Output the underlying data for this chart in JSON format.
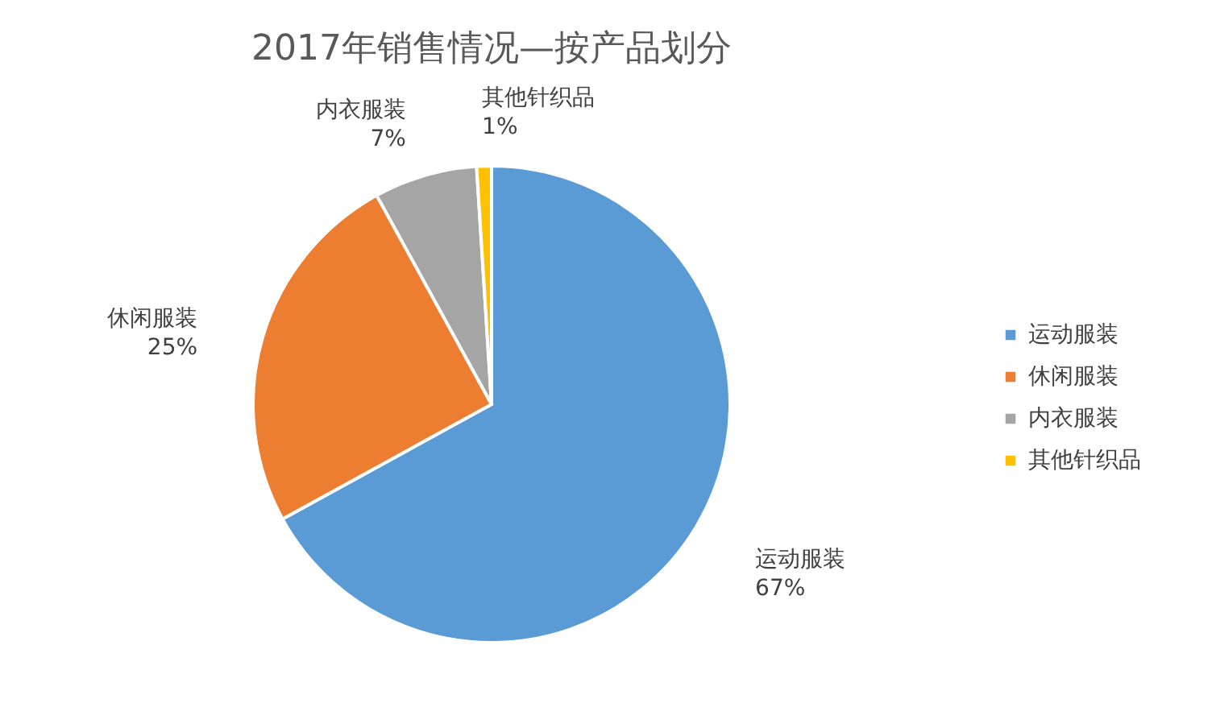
{
  "chart_data": {
    "type": "pie",
    "title": "2017年销售情况—按产品划分",
    "categories": [
      "运动服装",
      "休闲服装",
      "内衣服装",
      "其他针织品"
    ],
    "values": [
      67,
      25,
      7,
      1
    ],
    "colors": [
      "#5b9bd5",
      "#ed7d31",
      "#a5a5a5",
      "#ffc000"
    ],
    "value_labels": [
      "67%",
      "25%",
      "7%",
      "1%"
    ],
    "legend": "right"
  }
}
